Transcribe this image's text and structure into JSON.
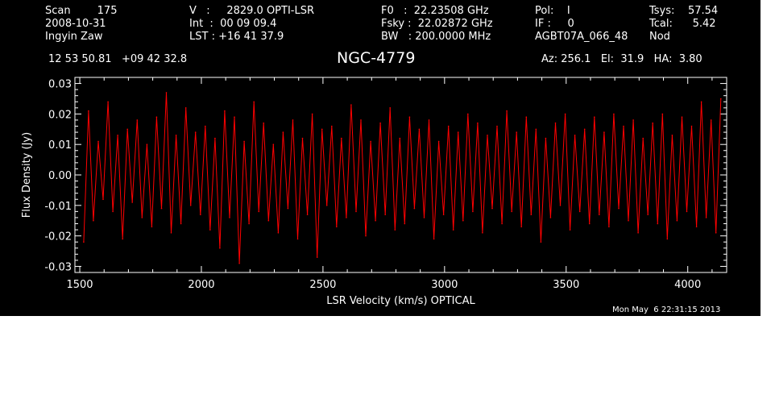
{
  "header": {
    "col1": [
      "Scan        175",
      "2008-10-31",
      "Ingyin Zaw"
    ],
    "col2": [
      "V   :     2829.0 OPTI-LSR",
      "Int  :  00 09 09.4",
      "LST : +16 41 37.9"
    ],
    "col3": [
      "F0   :  22.23508 GHz",
      "Fsky :  22.02872 GHz",
      "BW   : 200.0000 MHz"
    ],
    "col4": [
      "Pol:    I",
      "IF :     0",
      "AGBT07A_066_48"
    ],
    "col5": [
      "Tsys:    57.54",
      "Tcal:      5.42",
      "Nod"
    ],
    "coords": "12 53 50.81   +09 42 32.8",
    "source": "NGC-4779",
    "pointing": "Az: 256.1   El:  31.9   HA:  3.80"
  },
  "timestamp": "Mon May  6 22:31:15 2013",
  "colors": {
    "background": "#000000",
    "axes": "#ffffff",
    "trace": "#ff0000"
  },
  "chart_data": {
    "type": "line",
    "xlabel": "LSR Velocity (km/s) OPTICAL",
    "ylabel": "Flux Density (Jy)",
    "xlim": [
      1480,
      4160
    ],
    "ylim": [
      -0.032,
      0.032
    ],
    "x_ticks": [
      1500,
      2000,
      2500,
      3000,
      3500,
      4000
    ],
    "y_ticks": [
      -0.03,
      -0.02,
      -0.01,
      0.0,
      0.01,
      0.02,
      0.03
    ],
    "x_tick_labels": [
      "1500",
      "2000",
      "2500",
      "3000",
      "3500",
      "4000"
    ],
    "y_tick_labels": [
      "-0.03",
      "-0.02",
      "-0.01",
      "0.00",
      "0.01",
      "0.02",
      "0.03"
    ],
    "series": [
      {
        "x": [
          1516,
          1536,
          1556,
          1576,
          1596,
          1616,
          1636,
          1656,
          1676,
          1696,
          1716,
          1736,
          1756,
          1776,
          1796,
          1816,
          1836,
          1856,
          1876,
          1896,
          1916,
          1936,
          1956,
          1976,
          1996,
          2016,
          2036,
          2056,
          2076,
          2096,
          2116,
          2136,
          2156,
          2176,
          2196,
          2216,
          2236,
          2256,
          2276,
          2296,
          2316,
          2336,
          2356,
          2376,
          2396,
          2416,
          2436,
          2456,
          2476,
          2496,
          2516,
          2536,
          2556,
          2576,
          2596,
          2616,
          2636,
          2656,
          2676,
          2696,
          2716,
          2736,
          2756,
          2776,
          2796,
          2816,
          2836,
          2856,
          2876,
          2896,
          2916,
          2936,
          2956,
          2976,
          2996,
          3016,
          3036,
          3056,
          3076,
          3096,
          3116,
          3136,
          3156,
          3176,
          3196,
          3216,
          3236,
          3256,
          3276,
          3296,
          3316,
          3336,
          3356,
          3376,
          3396,
          3416,
          3436,
          3456,
          3476,
          3496,
          3516,
          3536,
          3556,
          3576,
          3596,
          3616,
          3636,
          3656,
          3676,
          3696,
          3716,
          3736,
          3756,
          3776,
          3796,
          3816,
          3836,
          3856,
          3876,
          3896,
          3916,
          3936,
          3956,
          3976,
          3996,
          4016,
          4036,
          4056,
          4076,
          4096,
          4116,
          4136
        ],
        "y": [
          -0.022,
          0.021,
          -0.015,
          0.011,
          -0.008,
          0.024,
          -0.012,
          0.013,
          -0.021,
          0.015,
          -0.009,
          0.018,
          -0.014,
          0.01,
          -0.017,
          0.019,
          -0.011,
          0.027,
          -0.019,
          0.013,
          -0.016,
          0.022,
          -0.01,
          0.014,
          -0.013,
          0.016,
          -0.018,
          0.012,
          -0.024,
          0.021,
          -0.014,
          0.019,
          -0.029,
          0.011,
          -0.016,
          0.024,
          -0.012,
          0.017,
          -0.015,
          0.01,
          -0.019,
          0.014,
          -0.011,
          0.018,
          -0.021,
          0.012,
          -0.013,
          0.02,
          -0.027,
          0.015,
          -0.01,
          0.016,
          -0.017,
          0.012,
          -0.014,
          0.023,
          -0.012,
          0.018,
          -0.02,
          0.011,
          -0.015,
          0.017,
          -0.013,
          0.022,
          -0.018,
          0.012,
          -0.016,
          0.019,
          -0.011,
          0.015,
          -0.014,
          0.018,
          -0.021,
          0.011,
          -0.013,
          0.016,
          -0.018,
          0.014,
          -0.015,
          0.02,
          -0.012,
          0.017,
          -0.019,
          0.013,
          -0.011,
          0.016,
          -0.016,
          0.021,
          -0.012,
          0.014,
          -0.017,
          0.019,
          -0.013,
          0.015,
          -0.022,
          0.012,
          -0.014,
          0.017,
          -0.01,
          0.02,
          -0.018,
          0.013,
          -0.012,
          0.015,
          -0.016,
          0.019,
          -0.013,
          0.014,
          -0.017,
          0.02,
          -0.011,
          0.016,
          -0.015,
          0.018,
          -0.019,
          0.012,
          -0.013,
          0.017,
          -0.016,
          0.02,
          -0.021,
          0.013,
          -0.015,
          0.019,
          -0.012,
          0.016,
          -0.017,
          0.024,
          -0.014,
          0.018,
          -0.019,
          0.025
        ]
      }
    ]
  }
}
